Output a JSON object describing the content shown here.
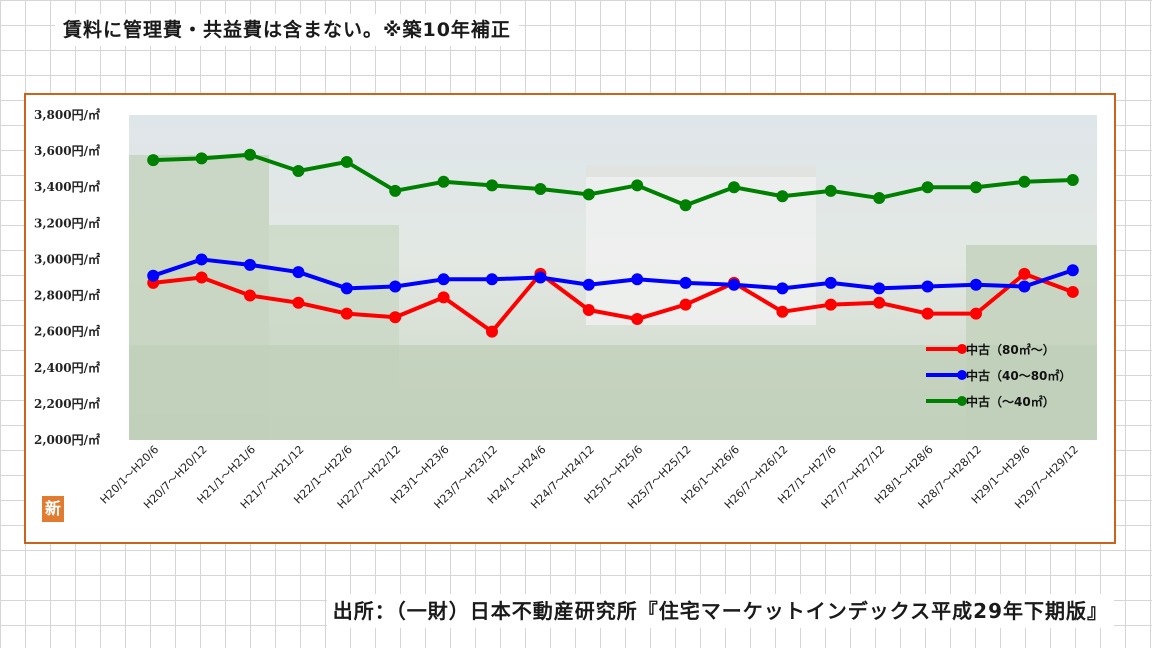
{
  "note": "賃料に管理費・共益費は含まない。※築10年補正",
  "source": "出所：（一財）日本不動産研究所『住宅マーケットインデックス平成29年下期版』",
  "logo_char": "新",
  "colors": {
    "frame": "#c8641c",
    "red": "#ff0000",
    "blue": "#0000ff",
    "green": "#008000"
  },
  "chart_data": {
    "type": "line",
    "title": "",
    "xlabel": "",
    "ylabel": "",
    "ylim": [
      2000,
      3800
    ],
    "yticks": [
      2000,
      2200,
      2400,
      2600,
      2800,
      3000,
      3200,
      3400,
      3600,
      3800
    ],
    "ytick_labels": [
      "2,000円/㎡",
      "2,200円/㎡",
      "2,400円/㎡",
      "2,600円/㎡",
      "2,800円/㎡",
      "3,000円/㎡",
      "3,200円/㎡",
      "3,400円/㎡",
      "3,600円/㎡",
      "3,800円/㎡"
    ],
    "grid": false,
    "legend_position": "right",
    "categories": [
      "H20/1～H20/6",
      "H20/7～H20/12",
      "H21/1～H21/6",
      "H21/7～H21/12",
      "H22/1～H22/6",
      "H22/7～H22/12",
      "H23/1～H23/6",
      "H23/7～H23/12",
      "H24/1～H24/6",
      "H24/7～H24/12",
      "H25/1～H25/6",
      "H25/7～H25/12",
      "H26/1～H26/6",
      "H26/7～H26/12",
      "H27/1～H27/6",
      "H27/7～H27/12",
      "H28/1～H28/6",
      "H28/7～H28/12",
      "H29/1～H29/6",
      "H29/7～H29/12"
    ],
    "series": [
      {
        "name": "中古（80㎡～）",
        "color": "#ff0000",
        "values": [
          2870,
          2900,
          2800,
          2760,
          2700,
          2680,
          2790,
          2600,
          2920,
          2720,
          2670,
          2750,
          2870,
          2710,
          2750,
          2760,
          2700,
          2700,
          2920,
          2820
        ]
      },
      {
        "name": "中古（40～80㎡）",
        "color": "#0000ff",
        "values": [
          2910,
          3000,
          2970,
          2930,
          2840,
          2850,
          2890,
          2890,
          2900,
          2860,
          2890,
          2870,
          2860,
          2840,
          2870,
          2840,
          2850,
          2860,
          2850,
          2940
        ]
      },
      {
        "name": "中古（～40㎡）",
        "color": "#008000",
        "values": [
          3550,
          3560,
          3580,
          3490,
          3540,
          3380,
          3430,
          3410,
          3390,
          3360,
          3410,
          3300,
          3400,
          3350,
          3380,
          3340,
          3400,
          3400,
          3430,
          3440
        ]
      }
    ]
  }
}
